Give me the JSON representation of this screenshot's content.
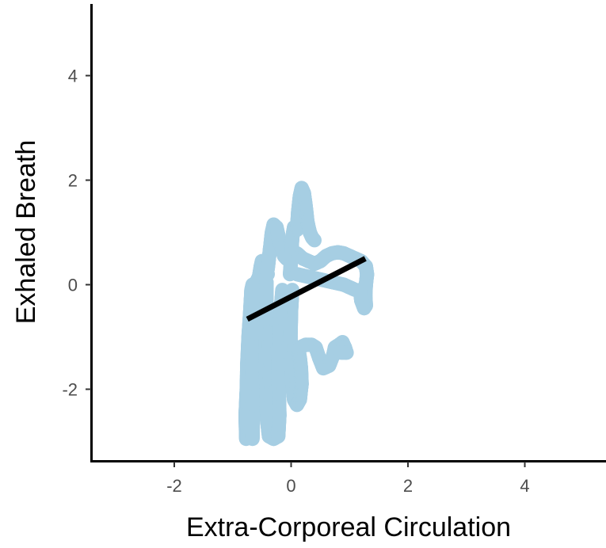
{
  "chart_data": {
    "type": "scatter",
    "title": "",
    "xlabel": "Extra-Corporeal Circulation",
    "ylabel": "Exhaled Breath",
    "xlim": [
      -3.4,
      5.4
    ],
    "ylim": [
      -3.4,
      5.4
    ],
    "xticks": [
      -2,
      0,
      2,
      4
    ],
    "yticks": [
      -2,
      0,
      2,
      4
    ],
    "grid": false,
    "point_color": "#a6cee3",
    "line_color": "#000000",
    "series": [
      {
        "kind": "points",
        "paths": [
          [
            [
              -0.77,
              -2.95
            ],
            [
              -0.78,
              -2.5
            ],
            [
              -0.76,
              -2.0
            ],
            [
              -0.75,
              -1.5
            ],
            [
              -0.73,
              -1.0
            ],
            [
              -0.7,
              -0.5
            ],
            [
              -0.68,
              -0.1
            ],
            [
              -0.66,
              0.0
            ]
          ],
          [
            [
              -0.66,
              -2.95
            ],
            [
              -0.65,
              -2.3
            ],
            [
              -0.66,
              -1.7
            ],
            [
              -0.67,
              -1.2
            ],
            [
              -0.63,
              -0.7
            ],
            [
              -0.6,
              -0.2
            ]
          ],
          [
            [
              -0.62,
              0.0
            ],
            [
              -0.55,
              0.15
            ],
            [
              -0.52,
              0.35
            ],
            [
              -0.5,
              0.45
            ],
            [
              -0.45,
              0.35
            ],
            [
              -0.42,
              0.3
            ],
            [
              -0.4,
              0.2
            ]
          ],
          [
            [
              -0.42,
              0.05
            ],
            [
              -0.42,
              -0.4
            ],
            [
              -0.43,
              -0.9
            ],
            [
              -0.44,
              -1.3
            ],
            [
              -0.43,
              -1.7
            ],
            [
              -0.42,
              -2.2
            ],
            [
              -0.41,
              -2.6
            ],
            [
              -0.38,
              -2.9
            ],
            [
              -0.3,
              -2.95
            ],
            [
              -0.22,
              -2.9
            ],
            [
              -0.2,
              -2.5
            ],
            [
              -0.21,
              -2.0
            ],
            [
              -0.22,
              -1.5
            ],
            [
              -0.2,
              -1.0
            ],
            [
              -0.18,
              -0.5
            ],
            [
              -0.15,
              -0.1
            ]
          ],
          [
            [
              -0.4,
              0.3
            ],
            [
              -0.36,
              0.7
            ],
            [
              -0.33,
              1.0
            ],
            [
              -0.3,
              1.15
            ],
            [
              -0.25,
              1.1
            ],
            [
              -0.22,
              0.95
            ]
          ],
          [
            [
              -0.22,
              0.9
            ],
            [
              -0.18,
              0.75
            ],
            [
              -0.12,
              0.55
            ],
            [
              -0.08,
              0.5
            ],
            [
              -0.02,
              0.45
            ]
          ],
          [
            [
              -0.02,
              0.2
            ],
            [
              0.0,
              0.5
            ],
            [
              0.02,
              0.9
            ],
            [
              0.05,
              1.1
            ],
            [
              0.1,
              1.05
            ],
            [
              0.12,
              1.4
            ],
            [
              0.15,
              1.7
            ],
            [
              0.18,
              1.85
            ],
            [
              0.22,
              1.75
            ],
            [
              0.25,
              1.5
            ],
            [
              0.28,
              1.2
            ],
            [
              0.32,
              1.0
            ],
            [
              0.36,
              0.9
            ],
            [
              0.4,
              0.85
            ]
          ],
          [
            [
              0.1,
              0.6
            ],
            [
              0.2,
              0.5
            ],
            [
              0.3,
              0.45
            ],
            [
              0.4,
              0.4
            ],
            [
              0.5,
              0.45
            ],
            [
              0.6,
              0.55
            ],
            [
              0.7,
              0.6
            ],
            [
              0.8,
              0.62
            ],
            [
              0.9,
              0.6
            ],
            [
              1.0,
              0.55
            ],
            [
              1.1,
              0.5
            ],
            [
              1.2,
              0.45
            ],
            [
              1.28,
              0.35
            ],
            [
              1.3,
              0.2
            ],
            [
              1.28,
              0.0
            ],
            [
              1.27,
              -0.2
            ],
            [
              1.28,
              -0.4
            ],
            [
              1.25,
              -0.45
            ],
            [
              1.2,
              -0.3
            ],
            [
              1.18,
              -0.1
            ]
          ],
          [
            [
              0.1,
              0.2
            ],
            [
              0.3,
              0.15
            ],
            [
              0.5,
              0.1
            ],
            [
              0.7,
              0.05
            ],
            [
              0.9,
              0.0
            ],
            [
              1.0,
              -0.05
            ],
            [
              1.1,
              -0.1
            ]
          ],
          [
            [
              0.02,
              -0.1
            ],
            [
              0.0,
              -0.5
            ],
            [
              -0.01,
              -1.0
            ],
            [
              0.0,
              -1.5
            ],
            [
              0.02,
              -1.9
            ],
            [
              0.05,
              -2.2
            ],
            [
              0.1,
              -2.3
            ],
            [
              0.15,
              -2.2
            ],
            [
              0.18,
              -1.9
            ],
            [
              0.17,
              -1.6
            ],
            [
              0.15,
              -1.4
            ],
            [
              0.12,
              -1.2
            ]
          ],
          [
            [
              0.15,
              -1.2
            ],
            [
              0.25,
              -1.15
            ],
            [
              0.35,
              -1.15
            ],
            [
              0.42,
              -1.2
            ],
            [
              0.48,
              -1.4
            ],
            [
              0.55,
              -1.6
            ],
            [
              0.65,
              -1.55
            ],
            [
              0.72,
              -1.35
            ],
            [
              0.75,
              -1.2
            ],
            [
              0.82,
              -1.15
            ],
            [
              0.88,
              -1.1
            ],
            [
              0.92,
              -1.2
            ],
            [
              0.95,
              -1.3
            ],
            [
              0.85,
              -1.3
            ]
          ]
        ]
      },
      {
        "kind": "fit",
        "x": [
          -0.75,
          1.27
        ],
        "y": [
          -0.66,
          0.5
        ]
      }
    ]
  }
}
